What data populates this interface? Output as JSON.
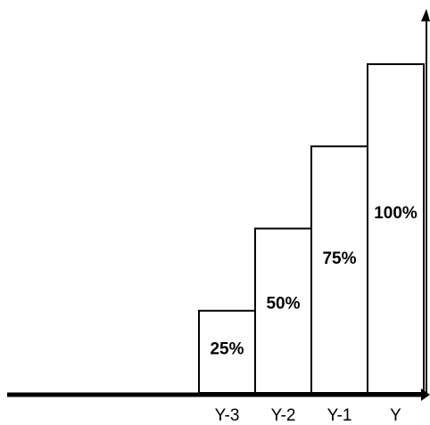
{
  "chart_data": {
    "type": "bar",
    "categories": [
      "Y-3",
      "Y-2",
      "Y-1",
      "Y"
    ],
    "values": [
      25,
      50,
      75,
      100
    ],
    "data_labels": [
      "25%",
      "50%",
      "75%",
      "100%"
    ],
    "title": "",
    "xlabel": "",
    "ylabel": "",
    "ylim": [
      0,
      116
    ],
    "grid": false,
    "legend": "none",
    "colors": {
      "bar_fill": "#ffffff",
      "bar_stroke": "#000000",
      "axis": "#000000"
    }
  }
}
